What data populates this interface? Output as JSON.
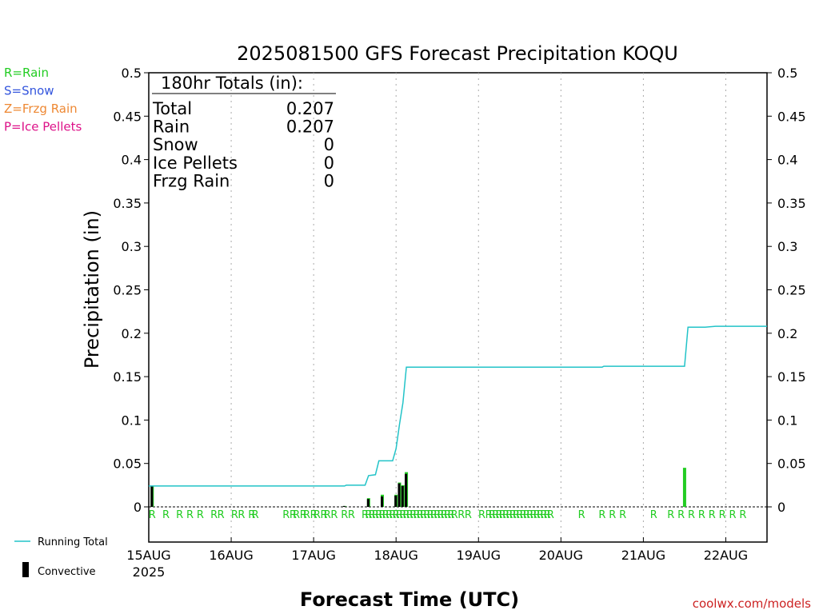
{
  "title": "2025081500 GFS Forecast Precipitation KOQU",
  "credit": "coolwx.com/models",
  "type_legend": [
    {
      "label": "R=Rain",
      "color": "#22cc22"
    },
    {
      "label": "S=Snow",
      "color": "#3355dd"
    },
    {
      "label": "Z=Frzg Rain",
      "color": "#ee8833"
    },
    {
      "label": "P=Ice Pellets",
      "color": "#dd1188"
    }
  ],
  "totals": {
    "header": "180hr Totals (in):",
    "rows": [
      {
        "label": "Total",
        "value": "0.207"
      },
      {
        "label": "Rain",
        "value": "0.207"
      },
      {
        "label": "Snow",
        "value": "0"
      },
      {
        "label": "Ice Pellets",
        "value": "0"
      },
      {
        "label": "Frzg Rain",
        "value": "0"
      }
    ]
  },
  "series_legend": {
    "running_total": "Running Total",
    "convective": "Convective",
    "running_total_color": "#22c3c8",
    "convective_color": "#000000",
    "precip_color": "#22cc22"
  },
  "chart_data": {
    "type": "bar",
    "title": "2025081500 GFS Forecast Precipitation KOQU",
    "xlabel": "Forecast Time (UTC)",
    "ylabel": "Precipitation (in)",
    "ylim": [
      0,
      0.5
    ],
    "xlim_hours": [
      0,
      180
    ],
    "y_ticks": [
      "0",
      "0.05",
      "0.1",
      "0.15",
      "0.2",
      "0.25",
      "0.3",
      "0.35",
      "0.4",
      "0.45",
      "0.5"
    ],
    "x_ticks": [
      {
        "hour": 0,
        "label": "15AUG",
        "sublabel": "2025"
      },
      {
        "hour": 24,
        "label": "16AUG"
      },
      {
        "hour": 48,
        "label": "17AUG"
      },
      {
        "hour": 72,
        "label": "18AUG"
      },
      {
        "hour": 96,
        "label": "19AUG"
      },
      {
        "hour": 120,
        "label": "20AUG"
      },
      {
        "hour": 144,
        "label": "21AUG"
      },
      {
        "hour": 168,
        "label": "22AUG"
      }
    ],
    "grid": "dotted vertical at each day",
    "precip_bars": [
      {
        "hour": 1,
        "total": 0.024,
        "convective": 0.024
      },
      {
        "hour": 57,
        "total": 0.001,
        "convective": 0.001
      },
      {
        "hour": 64,
        "total": 0.01,
        "convective": 0.009
      },
      {
        "hour": 68,
        "total": 0.014,
        "convective": 0.012
      },
      {
        "hour": 72,
        "total": 0.014,
        "convective": 0.013
      },
      {
        "hour": 73,
        "total": 0.028,
        "convective": 0.027
      },
      {
        "hour": 74,
        "total": 0.025,
        "convective": 0.024
      },
      {
        "hour": 75,
        "total": 0.04,
        "convective": 0.038
      },
      {
        "hour": 156,
        "total": 0.045,
        "convective": 0
      }
    ],
    "running_total": [
      [
        0,
        0.024
      ],
      [
        57,
        0.024
      ],
      [
        57.5,
        0.025
      ],
      [
        63,
        0.025
      ],
      [
        64,
        0.036
      ],
      [
        66,
        0.037
      ],
      [
        67,
        0.053
      ],
      [
        71,
        0.053
      ],
      [
        72,
        0.067
      ],
      [
        73,
        0.095
      ],
      [
        74,
        0.12
      ],
      [
        75,
        0.161
      ],
      [
        132,
        0.161
      ],
      [
        132.5,
        0.162
      ],
      [
        156,
        0.162
      ],
      [
        157,
        0.207
      ],
      [
        162,
        0.207
      ],
      [
        165,
        0.208
      ],
      [
        180,
        0.208
      ]
    ],
    "precip_type_hours": [
      1,
      5,
      9,
      12,
      15,
      19,
      21,
      25,
      27,
      30,
      31,
      40,
      42,
      43,
      45,
      46,
      48,
      49,
      51,
      52,
      54,
      57,
      59,
      63,
      64,
      65,
      66,
      67,
      68,
      69,
      70,
      71,
      72,
      73,
      74,
      75,
      76,
      77,
      78,
      79,
      80,
      81,
      82,
      83,
      84,
      85,
      86,
      87,
      88,
      89,
      91,
      93,
      97,
      99,
      100,
      101,
      102,
      103,
      104,
      105,
      106,
      107,
      108,
      109,
      110,
      111,
      112,
      113,
      114,
      115,
      116,
      117,
      126,
      132,
      135,
      138,
      147,
      152,
      155,
      158,
      161,
      164,
      167,
      170,
      173
    ],
    "precip_type_label": "R",
    "series": [
      {
        "name": "Running Total"
      },
      {
        "name": "Convective"
      }
    ]
  }
}
